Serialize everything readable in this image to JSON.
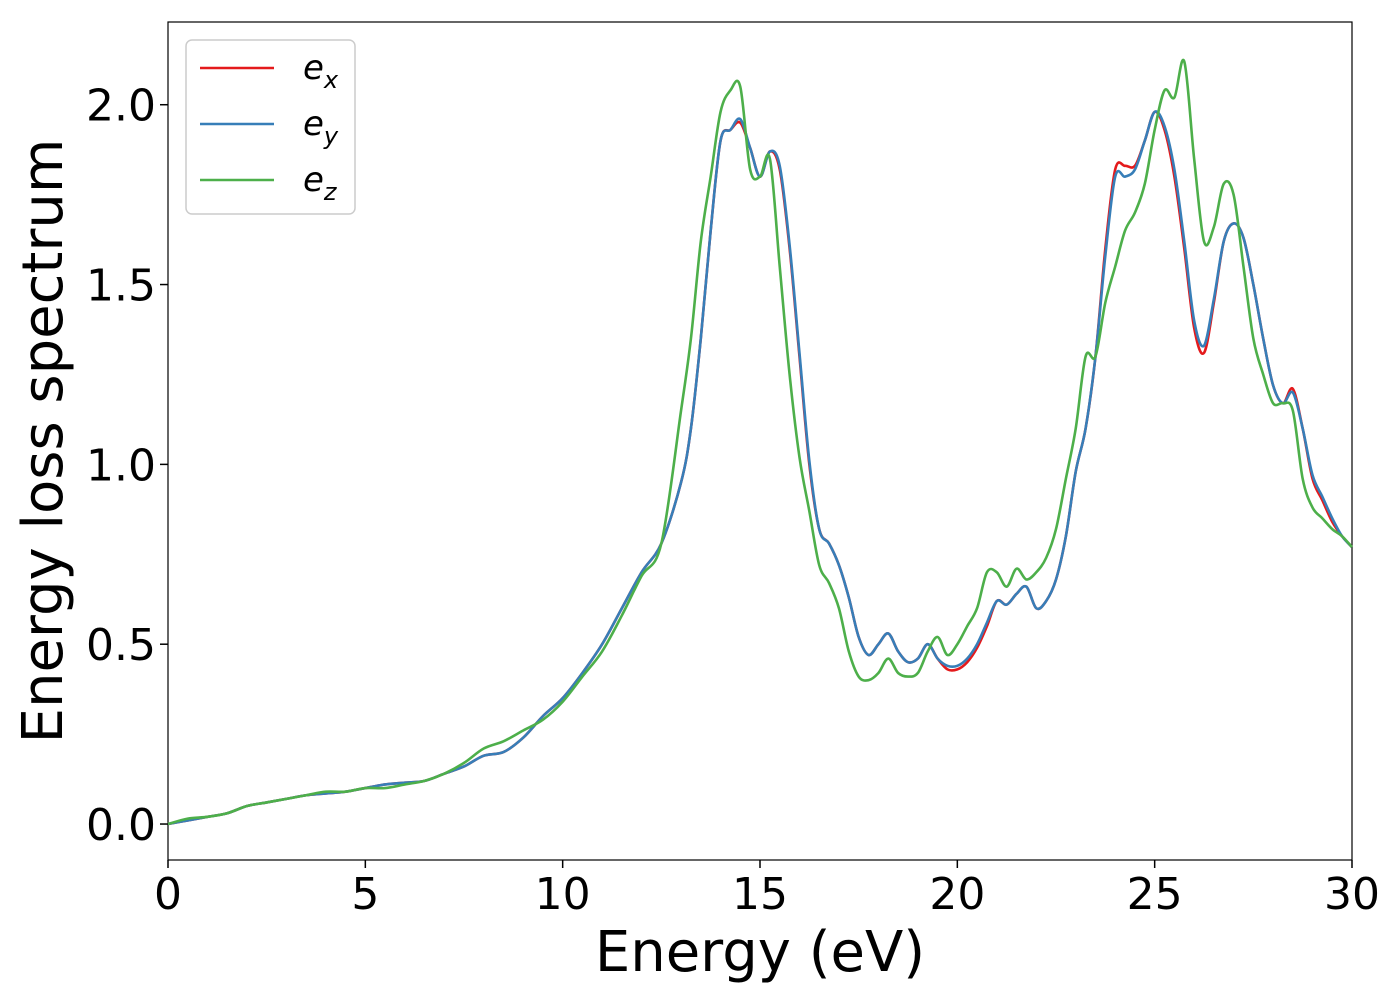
{
  "chart_data": {
    "type": "line",
    "title": "",
    "xlabel": "Energy (eV)",
    "ylabel": "Energy loss spectrum",
    "xlim": [
      0,
      30
    ],
    "ylim": [
      -0.1,
      2.23
    ],
    "xticks": [
      0,
      5,
      10,
      15,
      20,
      25,
      30
    ],
    "xtick_labels": [
      "0",
      "5",
      "10",
      "15",
      "20",
      "25",
      "30"
    ],
    "yticks": [
      0.0,
      0.5,
      1.0,
      1.5,
      2.0
    ],
    "ytick_labels": [
      "0.0",
      "0.5",
      "1.0",
      "1.5",
      "2.0"
    ],
    "grid": false,
    "legend_position": "top-left",
    "series": [
      {
        "name": "e_x",
        "legend_base": "e",
        "legend_sub": "x",
        "color": "#e41a1c",
        "x": [
          0,
          0.5,
          1,
          1.5,
          2,
          2.5,
          3,
          3.5,
          4,
          4.5,
          5,
          5.5,
          6,
          6.5,
          7,
          7.5,
          8,
          8.5,
          9,
          9.5,
          10,
          10.5,
          11,
          11.5,
          12,
          12.5,
          13,
          13.25,
          13.5,
          13.75,
          14,
          14.25,
          14.5,
          14.75,
          15,
          15.25,
          15.5,
          15.75,
          16,
          16.25,
          16.5,
          16.75,
          17,
          17.25,
          17.5,
          17.75,
          18,
          18.25,
          18.5,
          18.75,
          19,
          19.25,
          19.5,
          19.75,
          20,
          20.25,
          20.5,
          20.75,
          21,
          21.25,
          21.5,
          21.75,
          22,
          22.25,
          22.5,
          22.75,
          23,
          23.25,
          23.5,
          23.75,
          24,
          24.25,
          24.5,
          24.75,
          25,
          25.25,
          25.5,
          25.75,
          26,
          26.25,
          26.5,
          26.75,
          27,
          27.25,
          27.5,
          27.75,
          28,
          28.25,
          28.5,
          28.75,
          29,
          29.25,
          29.5,
          29.75,
          30
        ],
        "y": [
          0.0,
          0.01,
          0.02,
          0.03,
          0.05,
          0.06,
          0.07,
          0.08,
          0.085,
          0.09,
          0.1,
          0.11,
          0.115,
          0.12,
          0.14,
          0.16,
          0.19,
          0.2,
          0.24,
          0.3,
          0.35,
          0.42,
          0.5,
          0.6,
          0.7,
          0.78,
          0.95,
          1.1,
          1.35,
          1.65,
          1.9,
          1.93,
          1.95,
          1.88,
          1.8,
          1.87,
          1.82,
          1.6,
          1.3,
          1.0,
          0.82,
          0.78,
          0.72,
          0.63,
          0.52,
          0.47,
          0.5,
          0.53,
          0.48,
          0.45,
          0.46,
          0.5,
          0.46,
          0.43,
          0.43,
          0.45,
          0.49,
          0.55,
          0.62,
          0.61,
          0.64,
          0.66,
          0.6,
          0.62,
          0.68,
          0.8,
          0.98,
          1.1,
          1.3,
          1.6,
          1.82,
          1.83,
          1.83,
          1.9,
          1.98,
          1.93,
          1.8,
          1.6,
          1.38,
          1.31,
          1.45,
          1.62,
          1.67,
          1.63,
          1.5,
          1.35,
          1.22,
          1.17,
          1.21,
          1.1,
          0.96,
          0.9,
          0.84,
          0.8,
          0.77
        ]
      },
      {
        "name": "e_y",
        "legend_base": "e",
        "legend_sub": "y",
        "color": "#377eb8",
        "x": [
          0,
          0.5,
          1,
          1.5,
          2,
          2.5,
          3,
          3.5,
          4,
          4.5,
          5,
          5.5,
          6,
          6.5,
          7,
          7.5,
          8,
          8.5,
          9,
          9.5,
          10,
          10.5,
          11,
          11.5,
          12,
          12.5,
          13,
          13.25,
          13.5,
          13.75,
          14,
          14.25,
          14.5,
          14.75,
          15,
          15.25,
          15.5,
          15.75,
          16,
          16.25,
          16.5,
          16.75,
          17,
          17.25,
          17.5,
          17.75,
          18,
          18.25,
          18.5,
          18.75,
          19,
          19.25,
          19.5,
          19.75,
          20,
          20.25,
          20.5,
          20.75,
          21,
          21.25,
          21.5,
          21.75,
          22,
          22.25,
          22.5,
          22.75,
          23,
          23.25,
          23.5,
          23.75,
          24,
          24.25,
          24.5,
          24.75,
          25,
          25.25,
          25.5,
          25.75,
          26,
          26.25,
          26.5,
          26.75,
          27,
          27.25,
          27.5,
          27.75,
          28,
          28.25,
          28.5,
          28.75,
          29,
          29.25,
          29.5,
          29.75,
          30
        ],
        "y": [
          0.0,
          0.01,
          0.02,
          0.03,
          0.05,
          0.06,
          0.07,
          0.08,
          0.085,
          0.09,
          0.1,
          0.11,
          0.115,
          0.12,
          0.14,
          0.16,
          0.19,
          0.2,
          0.24,
          0.3,
          0.35,
          0.42,
          0.5,
          0.6,
          0.7,
          0.78,
          0.95,
          1.1,
          1.35,
          1.65,
          1.9,
          1.93,
          1.96,
          1.88,
          1.8,
          1.87,
          1.83,
          1.61,
          1.31,
          1.01,
          0.82,
          0.78,
          0.72,
          0.63,
          0.52,
          0.47,
          0.5,
          0.53,
          0.48,
          0.45,
          0.46,
          0.5,
          0.46,
          0.44,
          0.44,
          0.46,
          0.5,
          0.56,
          0.62,
          0.61,
          0.64,
          0.66,
          0.6,
          0.62,
          0.68,
          0.8,
          0.98,
          1.1,
          1.3,
          1.58,
          1.8,
          1.8,
          1.82,
          1.9,
          1.98,
          1.94,
          1.82,
          1.62,
          1.4,
          1.33,
          1.46,
          1.62,
          1.67,
          1.63,
          1.5,
          1.35,
          1.22,
          1.17,
          1.2,
          1.1,
          0.97,
          0.91,
          0.85,
          0.8,
          0.77
        ]
      },
      {
        "name": "e_z",
        "legend_base": "e",
        "legend_sub": "z",
        "color": "#4daf4a",
        "x": [
          0,
          0.5,
          1,
          1.5,
          2,
          2.5,
          3,
          3.5,
          4,
          4.5,
          5,
          5.5,
          6,
          6.5,
          7,
          7.5,
          8,
          8.5,
          9,
          9.5,
          10,
          10.5,
          11,
          11.5,
          12,
          12.5,
          13,
          13.25,
          13.5,
          13.75,
          14,
          14.25,
          14.5,
          14.75,
          15,
          15.25,
          15.5,
          15.75,
          16,
          16.25,
          16.5,
          16.75,
          17,
          17.25,
          17.5,
          17.75,
          18,
          18.25,
          18.5,
          18.75,
          19,
          19.25,
          19.5,
          19.75,
          20,
          20.25,
          20.5,
          20.75,
          21,
          21.25,
          21.5,
          21.75,
          22,
          22.25,
          22.5,
          22.75,
          23,
          23.25,
          23.5,
          23.75,
          24,
          24.25,
          24.5,
          24.75,
          25,
          25.25,
          25.5,
          25.75,
          26,
          26.25,
          26.5,
          26.75,
          27,
          27.25,
          27.5,
          27.75,
          28,
          28.25,
          28.5,
          28.75,
          29,
          29.25,
          29.5,
          29.75,
          30
        ],
        "y": [
          0.0,
          0.015,
          0.02,
          0.03,
          0.05,
          0.06,
          0.07,
          0.08,
          0.09,
          0.09,
          0.1,
          0.1,
          0.11,
          0.12,
          0.14,
          0.17,
          0.21,
          0.23,
          0.26,
          0.29,
          0.34,
          0.41,
          0.48,
          0.58,
          0.69,
          0.78,
          1.15,
          1.35,
          1.62,
          1.8,
          1.98,
          2.04,
          2.05,
          1.82,
          1.8,
          1.85,
          1.55,
          1.25,
          1.02,
          0.87,
          0.72,
          0.67,
          0.6,
          0.48,
          0.41,
          0.4,
          0.42,
          0.46,
          0.42,
          0.41,
          0.42,
          0.48,
          0.52,
          0.47,
          0.5,
          0.55,
          0.6,
          0.7,
          0.7,
          0.66,
          0.71,
          0.68,
          0.7,
          0.74,
          0.82,
          0.96,
          1.1,
          1.3,
          1.3,
          1.45,
          1.55,
          1.65,
          1.7,
          1.78,
          1.93,
          2.04,
          2.02,
          2.12,
          1.85,
          1.62,
          1.66,
          1.78,
          1.75,
          1.55,
          1.35,
          1.25,
          1.17,
          1.17,
          1.15,
          0.96,
          0.88,
          0.85,
          0.82,
          0.8,
          0.77
        ]
      }
    ]
  }
}
